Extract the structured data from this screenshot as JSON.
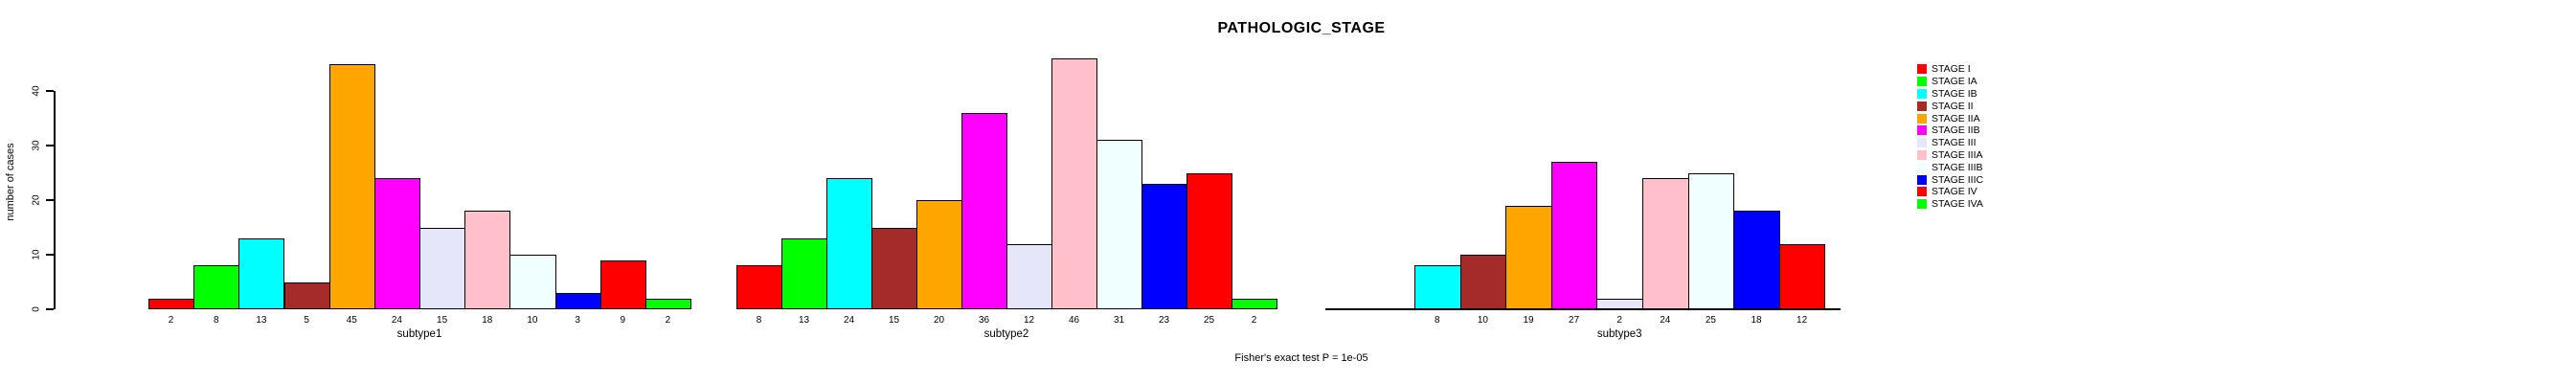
{
  "title": "PATHOLOGIC_STAGE",
  "footer": "Fisher's exact test P = 1e-05",
  "y_axis": {
    "title": "number of cases",
    "ticks": [
      0,
      10,
      20,
      30,
      40
    ]
  },
  "legend": {
    "position": "right",
    "entries": [
      {
        "label": "STAGE I",
        "color": "#FF0000"
      },
      {
        "label": "STAGE IA",
        "color": "#00FF00"
      },
      {
        "label": "STAGE IB",
        "color": "#00FFFF"
      },
      {
        "label": "STAGE II",
        "color": "#A52A2A"
      },
      {
        "label": "STAGE IIA",
        "color": "#FFA500"
      },
      {
        "label": "STAGE IIB",
        "color": "#FF00FF"
      },
      {
        "label": "STAGE III",
        "color": "#E6E6FA"
      },
      {
        "label": "STAGE IIIA",
        "color": "#FFC0CB"
      },
      {
        "label": "STAGE IIIB",
        "color": "#F0FFFF"
      },
      {
        "label": "STAGE IIIC",
        "color": "#0000FF"
      },
      {
        "label": "STAGE IV",
        "color": "#FF0000"
      },
      {
        "label": "STAGE IVA",
        "color": "#00FF00"
      }
    ]
  },
  "chart_data": {
    "type": "bar",
    "title": "PATHOLOGIC_STAGE",
    "ylabel": "number of cases",
    "ylim": [
      0,
      46
    ],
    "y_ticks": [
      0,
      10,
      20,
      30,
      40
    ],
    "grid": false,
    "legend_position": "right",
    "annotation": "Fisher's exact test P = 1e-05",
    "stage_colors": {
      "STAGE I": "#FF0000",
      "STAGE IA": "#00FF00",
      "STAGE IB": "#00FFFF",
      "STAGE II": "#A52A2A",
      "STAGE IIA": "#FFA500",
      "STAGE IIB": "#FF00FF",
      "STAGE III": "#E6E6FA",
      "STAGE IIIA": "#FFC0CB",
      "STAGE IIIB": "#F0FFFF",
      "STAGE IIIC": "#0000FF",
      "STAGE IV": "#FF0000",
      "STAGE IVA": "#00FF00"
    },
    "panels": [
      {
        "xlabel": "subtype1",
        "categories": [
          "STAGE I",
          "STAGE IA",
          "STAGE IB",
          "STAGE II",
          "STAGE IIA",
          "STAGE IIB",
          "STAGE III",
          "STAGE IIIA",
          "STAGE IIIB",
          "STAGE IIIC",
          "STAGE IV",
          "STAGE IVA"
        ],
        "values": [
          2,
          8,
          13,
          5,
          45,
          24,
          15,
          18,
          10,
          3,
          9,
          2
        ],
        "bar_labels": [
          "2",
          "8",
          "13",
          "5",
          "45",
          "24",
          "15",
          "18",
          "10",
          "3",
          "9",
          "2"
        ]
      },
      {
        "xlabel": "subtype2",
        "categories": [
          "STAGE I",
          "STAGE IA",
          "STAGE IB",
          "STAGE II",
          "STAGE IIA",
          "STAGE IIB",
          "STAGE III",
          "STAGE IIIA",
          "STAGE IIIB",
          "STAGE IIIC",
          "STAGE IV",
          "STAGE IVA"
        ],
        "values": [
          8,
          13,
          24,
          15,
          20,
          36,
          12,
          46,
          31,
          23,
          25,
          2
        ],
        "bar_labels": [
          "8",
          "13",
          "24",
          "15",
          "20",
          "36",
          "12",
          "46",
          "31",
          "23",
          "25",
          "2"
        ]
      },
      {
        "xlabel": "subtype3",
        "categories": [
          "STAGE IB",
          "STAGE II",
          "STAGE IIA",
          "STAGE IIB",
          "STAGE III",
          "STAGE IIIA",
          "STAGE IIIB",
          "STAGE IIIC",
          "STAGE IV"
        ],
        "values": [
          8,
          10,
          19,
          27,
          2,
          24,
          25,
          18,
          12
        ],
        "bar_labels": [
          "8",
          "10",
          "19",
          "27",
          "2",
          "24",
          "25",
          "18",
          "12"
        ]
      }
    ]
  }
}
